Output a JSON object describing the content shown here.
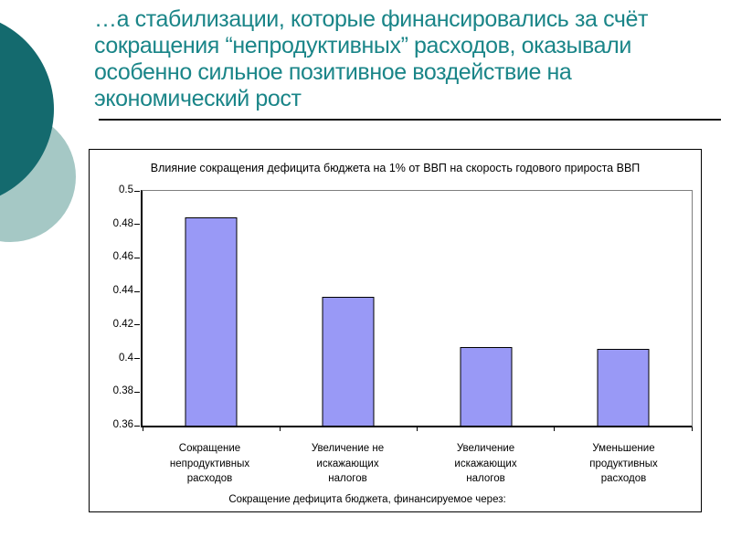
{
  "slide": {
    "title": "…а стабилизации, которые финансировались за счёт\nсокращения “непродуктивных” расходов, оказывали\nособенно сильное позитивное воздействие на\nэкономический рост",
    "colors": {
      "title_text": "#1a8588",
      "circle_dark": "#146a6e",
      "circle_light": "#a5c8c5",
      "divider": "#141414"
    }
  },
  "chart_data": {
    "type": "bar",
    "title": "Влияние сокращения дефицита бюджета на 1% от ВВП на скорость годового прироста ВВП",
    "categories": [
      "Сокращение\nнепродуктивных\nрасходов",
      "Увеличение не\nискажающих\nналогов",
      "Увеличение\nискажающих\nналогов",
      "Уменьшение\nпродуктивных\nрасходов"
    ],
    "values": [
      0.484,
      0.437,
      0.407,
      0.406
    ],
    "xlabel": "Сокращение дефицита бюджета, финансируемое через:",
    "ylabel": "",
    "ylim": [
      0.36,
      0.5
    ],
    "yticks": [
      "0.5",
      "0.48",
      "0.46",
      "0.44",
      "0.42",
      "0.4",
      "0.38",
      "0.36"
    ],
    "grid": false,
    "legend": "none",
    "bar_fill": "#9999f6",
    "bar_border": "#000000",
    "plot_border": "#7f7f7f"
  }
}
